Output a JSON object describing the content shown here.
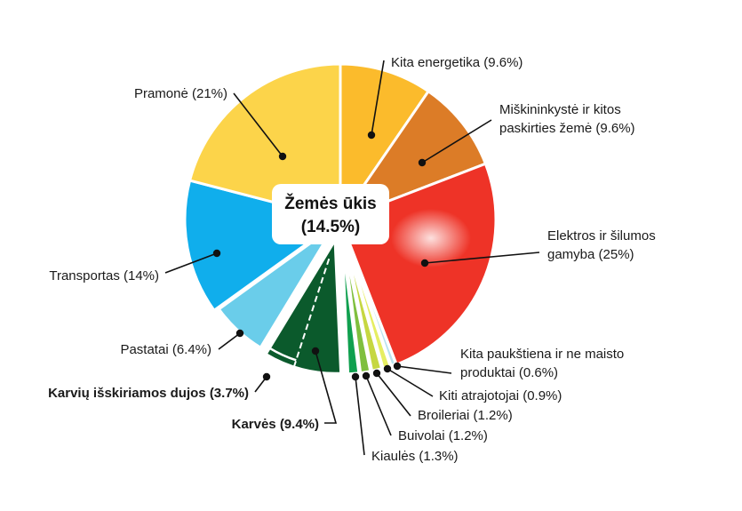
{
  "chart_data": {
    "type": "pie",
    "title": "",
    "center_label": [
      "Žemės ūkis",
      "(14.5%)"
    ],
    "slices": [
      {
        "name": "Kita energetika",
        "value": 9.6,
        "color": "#fbbb2c",
        "label": [
          "Kita energetika (9.6%)"
        ],
        "bold": false
      },
      {
        "name": "Miškininkystė ir kitos paskirties žemė",
        "value": 9.6,
        "color": "#dc7c27",
        "label": [
          "Miškininkystė ir kitos",
          "paskirties žemė (9.6%)"
        ],
        "bold": false
      },
      {
        "name": "Elektros ir šilumos gamyba",
        "value": 25,
        "color": "#ee3327",
        "label": [
          "Elektros ir šilumos",
          "gamyba (25%)"
        ],
        "bold": false
      },
      {
        "name": "Kita paukštiena ir ne maisto produktai",
        "value": 0.6,
        "color": "#b8e3ef",
        "label": [
          "Kita paukštiena ir ne maisto",
          "produktai (0.6%)"
        ],
        "bold": false
      },
      {
        "name": "Kiti atrajotojai",
        "value": 0.9,
        "color": "#e6ee62",
        "label": [
          "Kiti atrajotojai (0.9%)"
        ],
        "bold": false
      },
      {
        "name": "Broileriai",
        "value": 1.2,
        "color": "#c6d741",
        "label": [
          "Broileriai (1.2%)"
        ],
        "bold": false
      },
      {
        "name": "Buivolai",
        "value": 1.2,
        "color": "#7fbf3e",
        "label": [
          "Buivolai (1.2%)"
        ],
        "bold": false
      },
      {
        "name": "Kiaulės",
        "value": 1.3,
        "color": "#10a04f",
        "label": [
          "Kiaulės (1.3%)"
        ],
        "bold": false
      },
      {
        "name": "Karvės",
        "value": 9.4,
        "color": "#0b5a2c",
        "label": [
          "Karvės (9.4%)"
        ],
        "bold": true
      },
      {
        "name": "Pastatai",
        "value": 6.4,
        "color": "#6acdea",
        "label": [
          "Pastatai (6.4%)"
        ],
        "bold": false
      },
      {
        "name": "Transportas",
        "value": 14,
        "color": "#10aeec",
        "label": [
          "Transportas (14%)"
        ],
        "bold": false
      },
      {
        "name": "Pramonė",
        "value": 21,
        "color": "#fcd44a",
        "label": [
          "Pramonė (21%)"
        ],
        "bold": false
      }
    ],
    "sub_slice": {
      "parent": "Karvės",
      "name": "Karvių išskiriamos dujos",
      "value": 3.7,
      "label": [
        "Karvių išskiriamos dujos (3.7%)"
      ],
      "bold": true
    },
    "legend": "none"
  }
}
